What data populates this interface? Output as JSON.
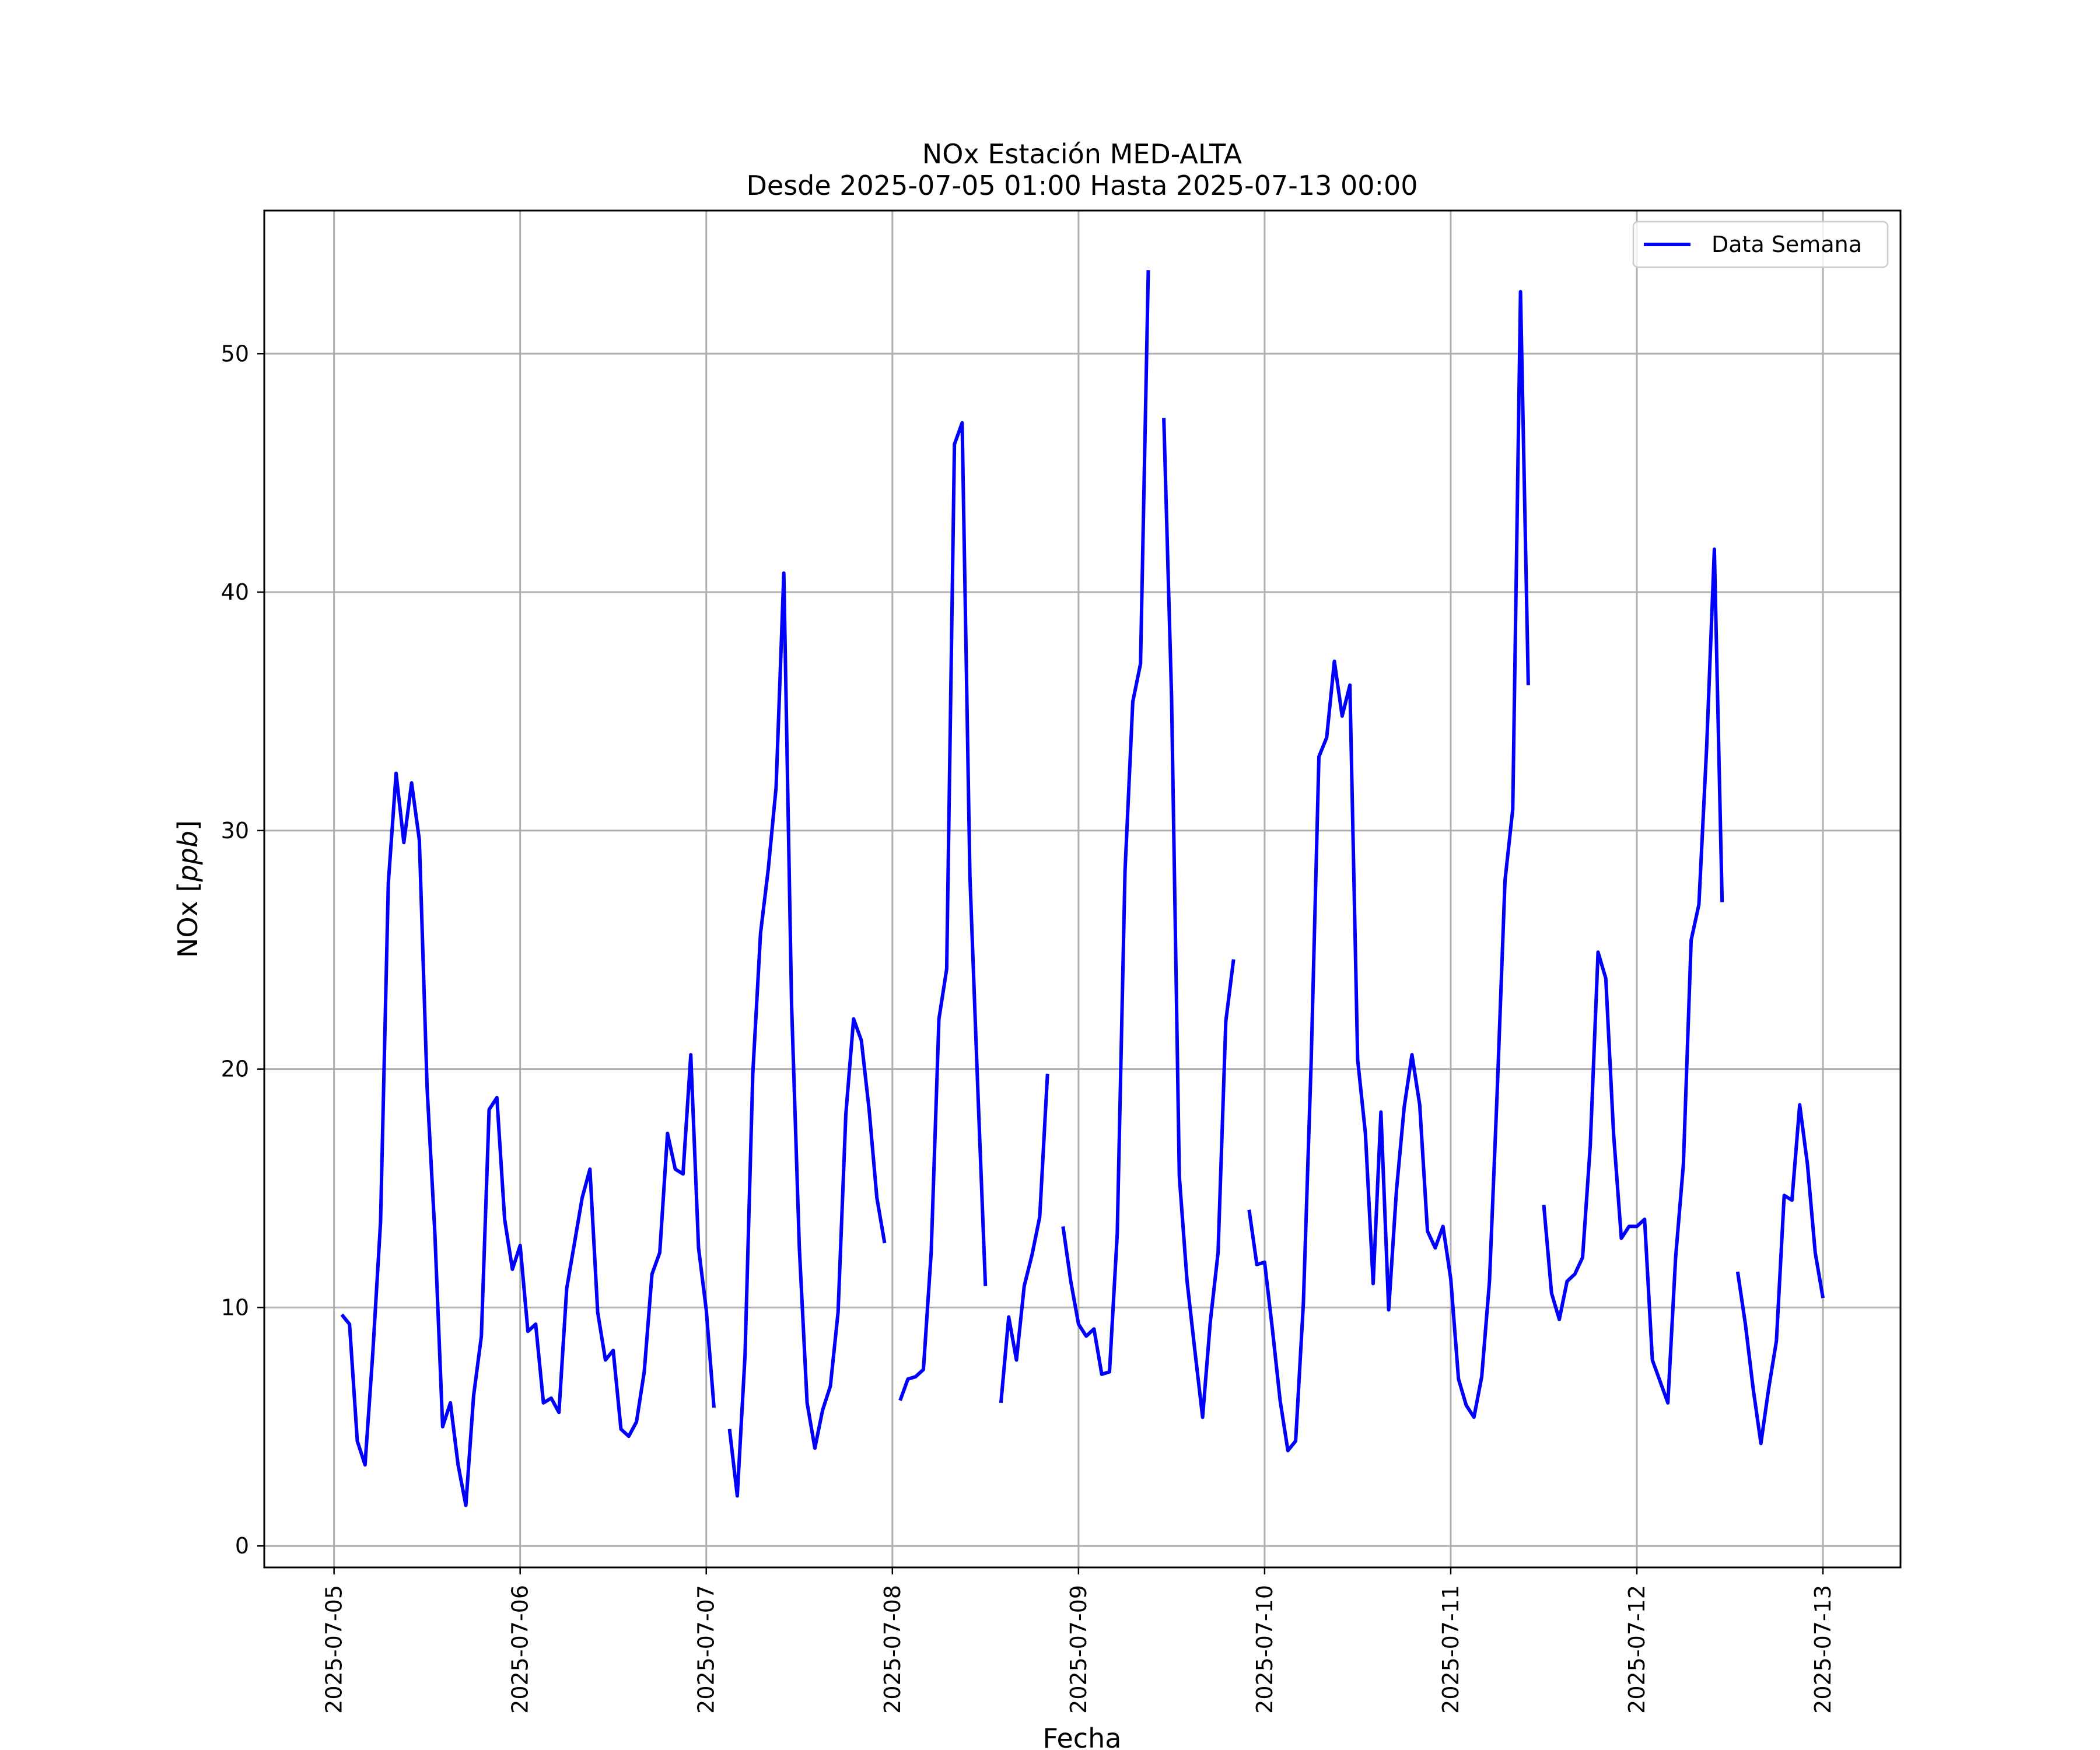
{
  "chart_data": {
    "type": "line",
    "title": "NOx Estación MED-ALTA",
    "subtitle": "Desde 2025-07-05 01:00 Hasta 2025-07-13 00:00",
    "xlabel": "Fecha",
    "ylabel_main": "NOx [",
    "ylabel_unit": "ppb",
    "ylabel_close": "]",
    "xlim": [
      "2025-07-04 15:00",
      "2025-07-13 10:00"
    ],
    "ylim": [
      -0.9,
      56
    ],
    "yticks": [
      0,
      10,
      20,
      30,
      40,
      50
    ],
    "xticks": [
      "2025-07-05",
      "2025-07-06",
      "2025-07-07",
      "2025-07-08",
      "2025-07-09",
      "2025-07-10",
      "2025-07-11",
      "2025-07-12",
      "2025-07-13"
    ],
    "grid": true,
    "legend_position": "top-right",
    "color": "#0000ff",
    "series": [
      {
        "name": "Data Semana",
        "points": [
          [
            "2025-07-05 01:00",
            9.7
          ],
          [
            "2025-07-05 02:00",
            9.3
          ],
          [
            "2025-07-05 03:00",
            4.4
          ],
          [
            "2025-07-05 04:00",
            3.4
          ],
          [
            "2025-07-05 05:00",
            8.1
          ],
          [
            "2025-07-05 06:00",
            13.6
          ],
          [
            "2025-07-05 07:00",
            27.8
          ],
          [
            "2025-07-05 08:00",
            32.4
          ],
          [
            "2025-07-05 09:00",
            29.5
          ],
          [
            "2025-07-05 10:00",
            32.0
          ],
          [
            "2025-07-05 11:00",
            29.6
          ],
          [
            "2025-07-05 12:00",
            19.2
          ],
          [
            "2025-07-05 13:00",
            13.1
          ],
          [
            "2025-07-05 14:00",
            5.0
          ],
          [
            "2025-07-05 15:00",
            6.0
          ],
          [
            "2025-07-05 16:00",
            3.4
          ],
          [
            "2025-07-05 17:00",
            1.7
          ],
          [
            "2025-07-05 18:00",
            6.3
          ],
          [
            "2025-07-05 19:00",
            8.8
          ],
          [
            "2025-07-05 20:00",
            18.3
          ],
          [
            "2025-07-05 21:00",
            18.8
          ],
          [
            "2025-07-05 22:00",
            13.7
          ],
          [
            "2025-07-05 23:00",
            11.6
          ],
          [
            "2025-07-06 00:00",
            12.6
          ],
          [
            "2025-07-06 01:00",
            9.0
          ],
          [
            "2025-07-06 02:00",
            9.3
          ],
          [
            "2025-07-06 03:00",
            6.0
          ],
          [
            "2025-07-06 04:00",
            6.2
          ],
          [
            "2025-07-06 05:00",
            5.6
          ],
          [
            "2025-07-06 06:00",
            10.8
          ],
          [
            "2025-07-06 07:00",
            12.7
          ],
          [
            "2025-07-06 08:00",
            14.6
          ],
          [
            "2025-07-06 09:00",
            15.8
          ],
          [
            "2025-07-06 10:00",
            9.8
          ],
          [
            "2025-07-06 11:00",
            7.8
          ],
          [
            "2025-07-06 12:00",
            8.2
          ],
          [
            "2025-07-06 13:00",
            4.9
          ],
          [
            "2025-07-06 14:00",
            4.6
          ],
          [
            "2025-07-06 15:00",
            5.2
          ],
          [
            "2025-07-06 16:00",
            7.3
          ],
          [
            "2025-07-06 17:00",
            11.4
          ],
          [
            "2025-07-06 18:00",
            12.3
          ],
          [
            "2025-07-06 19:00",
            17.3
          ],
          [
            "2025-07-06 20:00",
            15.8
          ],
          [
            "2025-07-06 21:00",
            15.6
          ],
          [
            "2025-07-06 22:00",
            20.6
          ],
          [
            "2025-07-06 23:00",
            12.5
          ],
          [
            "2025-07-07 00:00",
            9.9
          ],
          [
            "2025-07-07 01:00",
            5.8
          ],
          null,
          [
            "2025-07-07 03:00",
            4.9
          ],
          [
            "2025-07-07 04:00",
            2.1
          ],
          [
            "2025-07-07 05:00",
            8.0
          ],
          [
            "2025-07-07 06:00",
            19.8
          ],
          [
            "2025-07-07 07:00",
            25.7
          ],
          [
            "2025-07-07 08:00",
            28.4
          ],
          [
            "2025-07-07 09:00",
            31.8
          ],
          [
            "2025-07-07 10:00",
            40.8
          ],
          [
            "2025-07-07 11:00",
            22.7
          ],
          [
            "2025-07-07 12:00",
            12.5
          ],
          [
            "2025-07-07 13:00",
            6.0
          ],
          [
            "2025-07-07 14:00",
            4.1
          ],
          [
            "2025-07-07 15:00",
            5.7
          ],
          [
            "2025-07-07 16:00",
            6.7
          ],
          [
            "2025-07-07 17:00",
            9.8
          ],
          [
            "2025-07-07 18:00",
            18.1
          ],
          [
            "2025-07-07 19:00",
            22.1
          ],
          [
            "2025-07-07 20:00",
            21.2
          ],
          [
            "2025-07-07 21:00",
            18.3
          ],
          [
            "2025-07-07 22:00",
            14.6
          ],
          [
            "2025-07-07 23:00",
            12.7
          ],
          null,
          [
            "2025-07-08 01:00",
            6.1
          ],
          [
            "2025-07-08 02:00",
            7.0
          ],
          [
            "2025-07-08 03:00",
            7.1
          ],
          [
            "2025-07-08 04:00",
            7.4
          ],
          [
            "2025-07-08 05:00",
            12.3
          ],
          [
            "2025-07-08 06:00",
            22.1
          ],
          [
            "2025-07-08 07:00",
            24.2
          ],
          [
            "2025-07-08 08:00",
            46.2
          ],
          [
            "2025-07-08 09:00",
            47.1
          ],
          [
            "2025-07-08 10:00",
            28.1
          ],
          [
            "2025-07-08 11:00",
            19.3
          ],
          [
            "2025-07-08 12:00",
            10.9
          ],
          null,
          [
            "2025-07-08 14:00",
            6.0
          ],
          [
            "2025-07-08 15:00",
            9.6
          ],
          [
            "2025-07-08 16:00",
            7.8
          ],
          [
            "2025-07-08 17:00",
            10.9
          ],
          [
            "2025-07-08 18:00",
            12.2
          ],
          [
            "2025-07-08 19:00",
            13.8
          ],
          [
            "2025-07-08 20:00",
            19.8
          ],
          null,
          [
            "2025-07-08 22:00",
            13.4
          ],
          [
            "2025-07-08 23:00",
            11.1
          ],
          [
            "2025-07-09 00:00",
            9.3
          ],
          [
            "2025-07-09 01:00",
            8.8
          ],
          [
            "2025-07-09 02:00",
            9.1
          ],
          [
            "2025-07-09 03:00",
            7.2
          ],
          [
            "2025-07-09 04:00",
            7.3
          ],
          [
            "2025-07-09 05:00",
            13.1
          ],
          [
            "2025-07-09 06:00",
            28.3
          ],
          [
            "2025-07-09 07:00",
            35.4
          ],
          [
            "2025-07-09 08:00",
            37.0
          ],
          [
            "2025-07-09 09:00",
            53.5
          ],
          null,
          [
            "2025-07-09 11:00",
            47.3
          ],
          [
            "2025-07-09 12:00",
            35.6
          ],
          [
            "2025-07-09 13:00",
            15.5
          ],
          [
            "2025-07-09 14:00",
            11.1
          ],
          [
            "2025-07-09 15:00",
            8.2
          ],
          [
            "2025-07-09 16:00",
            5.4
          ],
          [
            "2025-07-09 17:00",
            9.4
          ],
          [
            "2025-07-09 18:00",
            12.3
          ],
          [
            "2025-07-09 19:00",
            22.0
          ],
          [
            "2025-07-09 20:00",
            24.6
          ],
          null,
          [
            "2025-07-09 22:00",
            14.1
          ],
          [
            "2025-07-09 23:00",
            11.8
          ],
          [
            "2025-07-10 00:00",
            11.9
          ],
          [
            "2025-07-10 01:00",
            9.1
          ],
          [
            "2025-07-10 02:00",
            6.1
          ],
          [
            "2025-07-10 03:00",
            4.0
          ],
          [
            "2025-07-10 04:00",
            4.4
          ],
          [
            "2025-07-10 05:00",
            10.2
          ],
          [
            "2025-07-10 06:00",
            20.3
          ],
          [
            "2025-07-10 07:00",
            33.1
          ],
          [
            "2025-07-10 08:00",
            33.9
          ],
          [
            "2025-07-10 09:00",
            37.1
          ],
          [
            "2025-07-10 10:00",
            34.8
          ],
          [
            "2025-07-10 11:00",
            36.1
          ],
          [
            "2025-07-10 12:00",
            20.4
          ],
          [
            "2025-07-10 13:00",
            17.3
          ],
          [
            "2025-07-10 14:00",
            11.0
          ],
          [
            "2025-07-10 15:00",
            18.2
          ],
          [
            "2025-07-10 16:00",
            9.9
          ],
          [
            "2025-07-10 17:00",
            14.9
          ],
          [
            "2025-07-10 18:00",
            18.4
          ],
          [
            "2025-07-10 19:00",
            20.6
          ],
          [
            "2025-07-10 20:00",
            18.5
          ],
          [
            "2025-07-10 21:00",
            13.2
          ],
          [
            "2025-07-10 22:00",
            12.5
          ],
          [
            "2025-07-10 23:00",
            13.4
          ],
          [
            "2025-07-11 00:00",
            11.2
          ],
          [
            "2025-07-11 01:00",
            7.0
          ],
          [
            "2025-07-11 02:00",
            5.9
          ],
          [
            "2025-07-11 03:00",
            5.4
          ],
          [
            "2025-07-11 04:00",
            7.1
          ],
          [
            "2025-07-11 05:00",
            11.1
          ],
          [
            "2025-07-11 06:00",
            19.1
          ],
          [
            "2025-07-11 07:00",
            27.9
          ],
          [
            "2025-07-11 08:00",
            30.9
          ],
          [
            "2025-07-11 09:00",
            52.6
          ],
          [
            "2025-07-11 10:00",
            36.1
          ],
          null,
          [
            "2025-07-11 12:00",
            14.3
          ],
          [
            "2025-07-11 13:00",
            10.6
          ],
          [
            "2025-07-11 14:00",
            9.5
          ],
          [
            "2025-07-11 15:00",
            11.1
          ],
          [
            "2025-07-11 16:00",
            11.4
          ],
          [
            "2025-07-11 17:00",
            12.1
          ],
          [
            "2025-07-11 18:00",
            16.8
          ],
          [
            "2025-07-11 19:00",
            24.9
          ],
          [
            "2025-07-11 20:00",
            23.8
          ],
          [
            "2025-07-11 21:00",
            17.3
          ],
          [
            "2025-07-11 22:00",
            12.9
          ],
          [
            "2025-07-11 23:00",
            13.4
          ],
          [
            "2025-07-12 00:00",
            13.4
          ],
          [
            "2025-07-12 01:00",
            13.7
          ],
          [
            "2025-07-12 02:00",
            7.8
          ],
          [
            "2025-07-12 03:00",
            6.9
          ],
          [
            "2025-07-12 04:00",
            6.0
          ],
          [
            "2025-07-12 05:00",
            12.1
          ],
          [
            "2025-07-12 06:00",
            16.0
          ],
          [
            "2025-07-12 07:00",
            25.4
          ],
          [
            "2025-07-12 08:00",
            26.9
          ],
          [
            "2025-07-12 09:00",
            33.5
          ],
          [
            "2025-07-12 10:00",
            41.8
          ],
          [
            "2025-07-12 11:00",
            27.0
          ],
          null,
          [
            "2025-07-12 13:00",
            11.5
          ],
          [
            "2025-07-12 14:00",
            9.3
          ],
          [
            "2025-07-12 15:00",
            6.6
          ],
          [
            "2025-07-12 16:00",
            4.3
          ],
          [
            "2025-07-12 17:00",
            6.6
          ],
          [
            "2025-07-12 18:00",
            8.6
          ],
          [
            "2025-07-12 19:00",
            14.7
          ],
          [
            "2025-07-12 20:00",
            14.5
          ],
          [
            "2025-07-12 21:00",
            18.5
          ],
          [
            "2025-07-12 22:00",
            16.0
          ],
          [
            "2025-07-12 23:00",
            12.3
          ],
          [
            "2025-07-13 00:00",
            10.4
          ]
        ]
      }
    ]
  }
}
